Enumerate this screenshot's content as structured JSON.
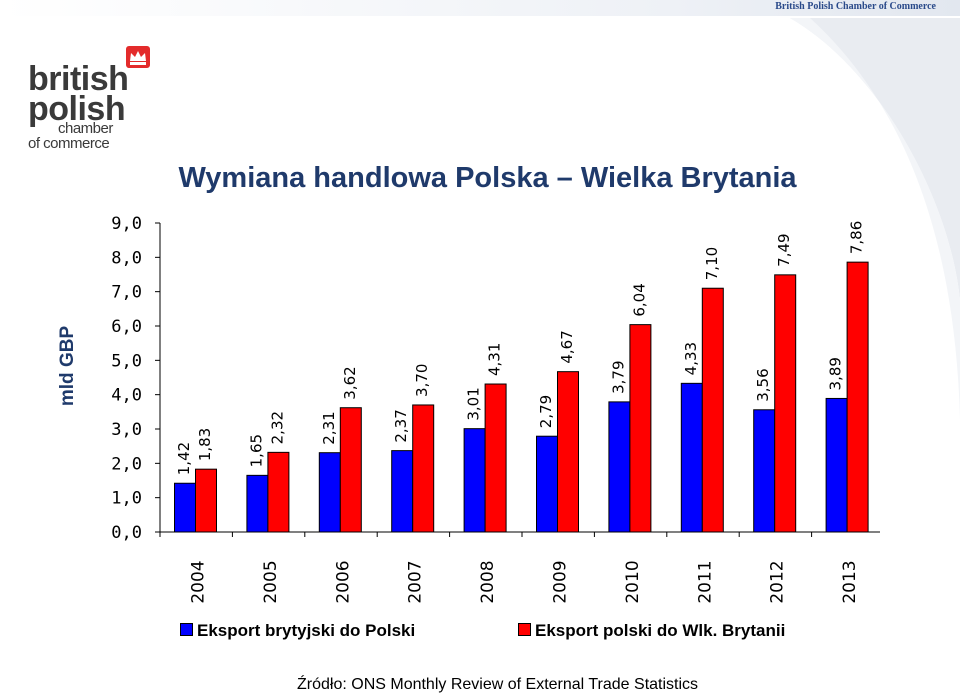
{
  "header": {
    "org_name": "British Polish Chamber of Commerce"
  },
  "logo": {
    "line1": "british",
    "line2": "polish",
    "line3": "chamber",
    "line4": "of commerce"
  },
  "chart_data": {
    "type": "bar",
    "title": "Wymiana handlowa Polska – Wielka Brytania",
    "ylabel": "mld GBP",
    "xlabel": "",
    "ylim": [
      0,
      9
    ],
    "yticks": [
      "0,0",
      "1,0",
      "2,0",
      "3,0",
      "4,0",
      "5,0",
      "6,0",
      "7,0",
      "8,0",
      "9,0"
    ],
    "grid": false,
    "legend_position": "bottom",
    "categories": [
      "2004",
      "2005",
      "2006",
      "2007",
      "2008",
      "2009",
      "2010",
      "2011",
      "2012",
      "2013"
    ],
    "series": [
      {
        "name": "Eksport brytyjski do Polski",
        "color": "#0000ff",
        "values": [
          1.42,
          1.65,
          2.31,
          2.37,
          3.01,
          2.79,
          3.79,
          4.33,
          3.56,
          3.89
        ],
        "labels": [
          "1,42",
          "1,65",
          "2,31",
          "2,37",
          "3,01",
          "2,79",
          "3,79",
          "4,33",
          "3,56",
          "3,89"
        ]
      },
      {
        "name": "Eksport polski do Wlk. Brytanii",
        "color": "#ff0000",
        "values": [
          1.83,
          2.32,
          3.62,
          3.7,
          4.31,
          4.67,
          6.04,
          7.1,
          7.49,
          7.86
        ],
        "labels": [
          "1,83",
          "2,32",
          "3,62",
          "3,70",
          "4,31",
          "4,67",
          "6,04",
          "7,10",
          "7,49",
          "7,86"
        ]
      }
    ]
  },
  "source": "Źródło: ONS Monthly Review of External Trade Statistics"
}
